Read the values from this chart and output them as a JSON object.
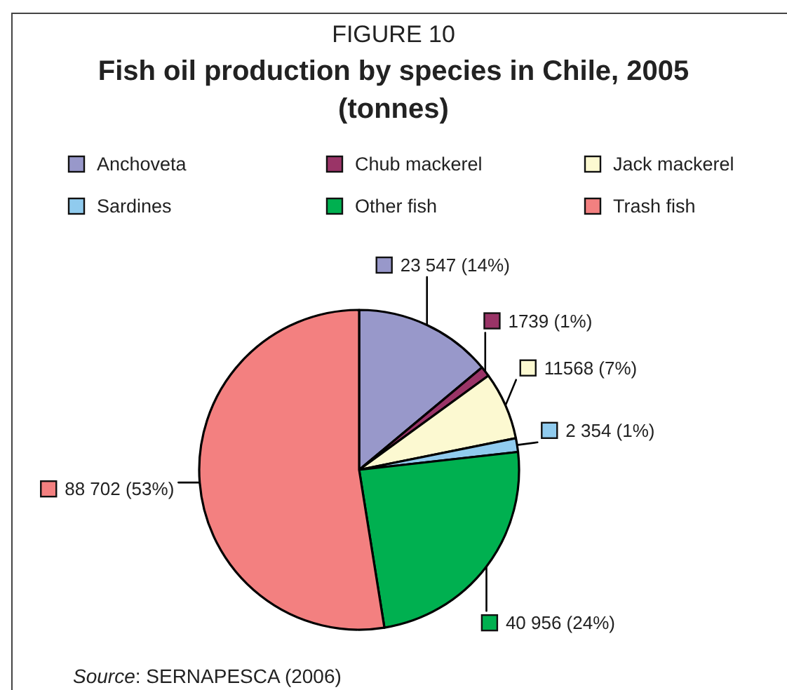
{
  "chart_data": {
    "type": "pie",
    "title": "Fish oil production by species in Chile, 2005 (tonnes)",
    "annotations": [
      "FIGURE 10",
      "Source: SERNAPESCA (2006)"
    ],
    "categories": [
      "Anchoveta",
      "Chub mackerel",
      "Jack mackerel",
      "Sardines",
      "Other fish",
      "Trash fish"
    ],
    "values": [
      23547,
      1739,
      11568,
      2354,
      40956,
      88702
    ],
    "colors": [
      "#9898ca",
      "#9a3467",
      "#fcf9d1",
      "#90cbee",
      "#00b050",
      "#f38080"
    ],
    "value_labels": [
      "23 547 (14%)",
      "1739 (1%)",
      "11568 (7%)",
      "2 354 (1%)",
      "40 956 (24%)",
      "88 702 (53%)"
    ],
    "legend": "top"
  }
}
